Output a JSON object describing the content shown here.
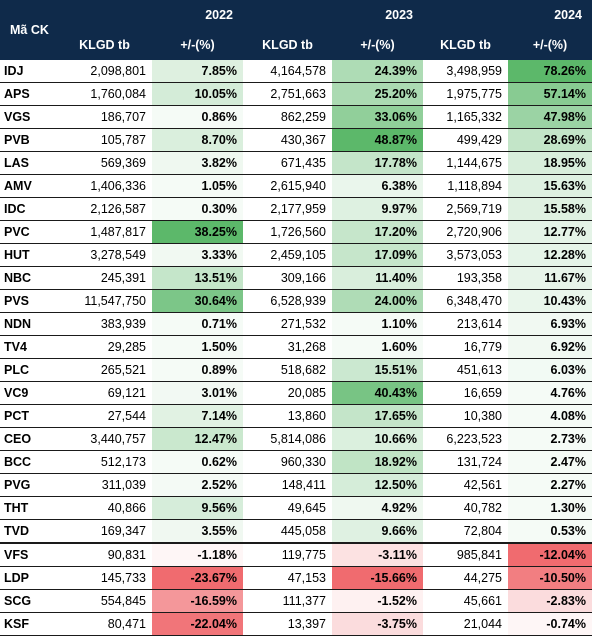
{
  "header": {
    "code_label": "Mã CK",
    "years": [
      "2022",
      "2023",
      "2024"
    ],
    "vol_label": "KLGD tb",
    "chg_label": "+/-(%)"
  },
  "colors": {
    "header_bg": "#0f2a4a",
    "positive_max": "#5cb86a",
    "negative_max": "#f06b6f"
  },
  "rows": [
    {
      "code": "IDJ",
      "v2022": "2,098,801",
      "c2022": "7.85%",
      "v2023": "4,164,578",
      "c2023": "24.39%",
      "v2024": "3,498,959",
      "c2024": "78.26%"
    },
    {
      "code": "APS",
      "v2022": "1,760,084",
      "c2022": "10.05%",
      "v2023": "2,751,663",
      "c2023": "25.20%",
      "v2024": "1,975,775",
      "c2024": "57.14%"
    },
    {
      "code": "VGS",
      "v2022": "186,707",
      "c2022": "0.86%",
      "v2023": "862,259",
      "c2023": "33.06%",
      "v2024": "1,165,332",
      "c2024": "47.98%"
    },
    {
      "code": "PVB",
      "v2022": "105,787",
      "c2022": "8.70%",
      "v2023": "430,367",
      "c2023": "48.87%",
      "v2024": "499,429",
      "c2024": "28.69%"
    },
    {
      "code": "LAS",
      "v2022": "569,369",
      "c2022": "3.82%",
      "v2023": "671,435",
      "c2023": "17.78%",
      "v2024": "1,144,675",
      "c2024": "18.95%"
    },
    {
      "code": "AMV",
      "v2022": "1,406,336",
      "c2022": "1.05%",
      "v2023": "2,615,940",
      "c2023": "6.38%",
      "v2024": "1,118,894",
      "c2024": "15.63%"
    },
    {
      "code": "IDC",
      "v2022": "2,126,587",
      "c2022": "0.30%",
      "v2023": "2,177,959",
      "c2023": "9.97%",
      "v2024": "2,569,719",
      "c2024": "15.58%"
    },
    {
      "code": "PVC",
      "v2022": "1,487,817",
      "c2022": "38.25%",
      "v2023": "1,726,560",
      "c2023": "17.20%",
      "v2024": "2,720,906",
      "c2024": "12.77%"
    },
    {
      "code": "HUT",
      "v2022": "3,278,549",
      "c2022": "3.33%",
      "v2023": "2,459,105",
      "c2023": "17.09%",
      "v2024": "3,573,053",
      "c2024": "12.28%"
    },
    {
      "code": "NBC",
      "v2022": "245,391",
      "c2022": "13.51%",
      "v2023": "309,166",
      "c2023": "11.40%",
      "v2024": "193,358",
      "c2024": "11.67%"
    },
    {
      "code": "PVS",
      "v2022": "11,547,750",
      "c2022": "30.64%",
      "v2023": "6,528,939",
      "c2023": "24.00%",
      "v2024": "6,348,470",
      "c2024": "10.43%"
    },
    {
      "code": "NDN",
      "v2022": "383,939",
      "c2022": "0.71%",
      "v2023": "271,532",
      "c2023": "1.10%",
      "v2024": "213,614",
      "c2024": "6.93%"
    },
    {
      "code": "TV4",
      "v2022": "29,285",
      "c2022": "1.50%",
      "v2023": "31,268",
      "c2023": "1.60%",
      "v2024": "16,779",
      "c2024": "6.92%"
    },
    {
      "code": "PLC",
      "v2022": "265,521",
      "c2022": "0.89%",
      "v2023": "518,682",
      "c2023": "15.51%",
      "v2024": "451,613",
      "c2024": "6.03%"
    },
    {
      "code": "VC9",
      "v2022": "69,121",
      "c2022": "3.01%",
      "v2023": "20,085",
      "c2023": "40.43%",
      "v2024": "16,659",
      "c2024": "4.76%"
    },
    {
      "code": "PCT",
      "v2022": "27,544",
      "c2022": "7.14%",
      "v2023": "13,860",
      "c2023": "17.65%",
      "v2024": "10,380",
      "c2024": "4.08%"
    },
    {
      "code": "CEO",
      "v2022": "3,440,757",
      "c2022": "12.47%",
      "v2023": "5,814,086",
      "c2023": "10.66%",
      "v2024": "6,223,523",
      "c2024": "2.73%"
    },
    {
      "code": "BCC",
      "v2022": "512,173",
      "c2022": "0.62%",
      "v2023": "960,330",
      "c2023": "18.92%",
      "v2024": "131,724",
      "c2024": "2.47%"
    },
    {
      "code": "PVG",
      "v2022": "311,039",
      "c2022": "2.52%",
      "v2023": "148,411",
      "c2023": "12.50%",
      "v2024": "42,561",
      "c2024": "2.27%"
    },
    {
      "code": "THT",
      "v2022": "40,866",
      "c2022": "9.56%",
      "v2023": "49,645",
      "c2023": "4.92%",
      "v2024": "40,782",
      "c2024": "1.30%"
    },
    {
      "code": "TVD",
      "v2022": "169,347",
      "c2022": "3.55%",
      "v2023": "445,058",
      "c2023": "9.66%",
      "v2024": "72,804",
      "c2024": "0.53%"
    },
    {
      "code": "VFS",
      "v2022": "90,831",
      "c2022": "-1.18%",
      "v2023": "119,775",
      "c2023": "-3.11%",
      "v2024": "985,841",
      "c2024": "-12.04%"
    },
    {
      "code": "LDP",
      "v2022": "145,733",
      "c2022": "-23.67%",
      "v2023": "47,153",
      "c2023": "-15.66%",
      "v2024": "44,275",
      "c2024": "-10.50%"
    },
    {
      "code": "SCG",
      "v2022": "554,845",
      "c2022": "-16.59%",
      "v2023": "111,377",
      "c2023": "-1.52%",
      "v2024": "45,661",
      "c2024": "-2.83%"
    },
    {
      "code": "KSF",
      "v2022": "80,471",
      "c2022": "-22.04%",
      "v2023": "13,397",
      "c2023": "-3.75%",
      "v2024": "21,044",
      "c2024": "-0.74%"
    }
  ]
}
